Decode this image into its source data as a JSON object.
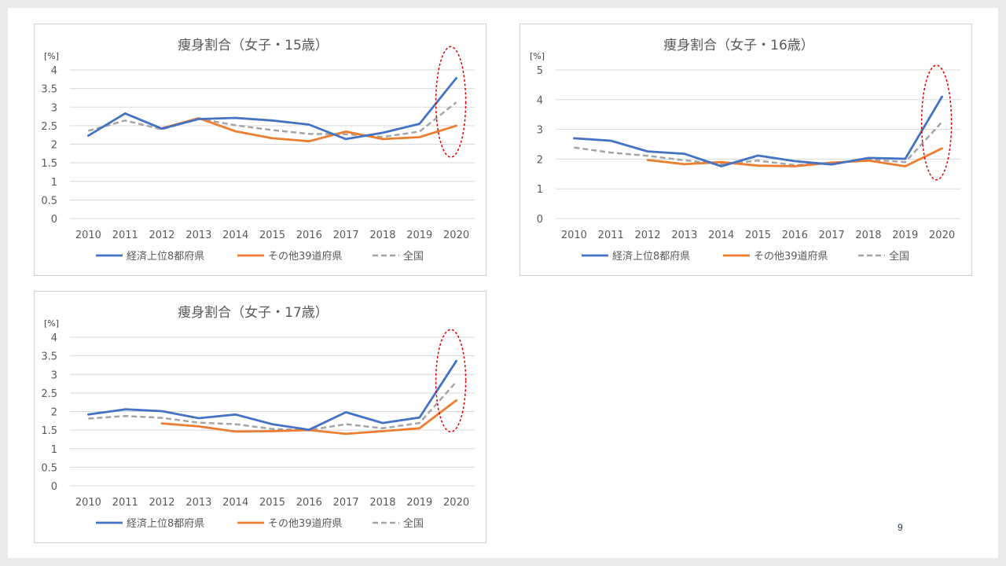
{
  "page": {
    "number": "9"
  },
  "legend": {
    "top": "経済上位8都府県",
    "other": "その他39道府県",
    "national": "全国"
  },
  "colors": {
    "top": "#4472c4",
    "other": "#ed7d31",
    "national": "#a5a5a5",
    "highlight": "#e00000",
    "grid": "#d9d9d9",
    "text": "#595959"
  },
  "chart_data": [
    {
      "type": "line",
      "title": "痩身割合（女子・15歳）",
      "ylabel": "[%]",
      "ylim": [
        0,
        4
      ],
      "yticks": [
        "0",
        "0.5",
        "1",
        "1.5",
        "2",
        "2.5",
        "3",
        "3.5",
        "4"
      ],
      "x": [
        "2010",
        "2011",
        "2012",
        "2013",
        "2014",
        "2015",
        "2016",
        "2017",
        "2018",
        "2019",
        "2020"
      ],
      "legend_position": "bottom",
      "series": [
        {
          "name": "経済上位8都府県",
          "key": "top",
          "values": [
            2.23,
            2.83,
            2.42,
            2.68,
            2.71,
            2.64,
            2.53,
            2.14,
            2.31,
            2.55,
            3.78
          ]
        },
        {
          "name": "その他39道府県",
          "key": "other",
          "values": [
            null,
            null,
            2.43,
            2.7,
            2.35,
            2.16,
            2.08,
            2.34,
            2.14,
            2.19,
            2.5
          ]
        },
        {
          "name": "全国",
          "key": "national",
          "values": [
            2.36,
            2.64,
            2.4,
            2.69,
            2.51,
            2.38,
            2.28,
            2.27,
            2.2,
            2.34,
            3.13
          ]
        }
      ],
      "highlight_x": "2020"
    },
    {
      "type": "line",
      "title": "痩身割合（女子・16歳）",
      "ylabel": "[%]",
      "ylim": [
        0,
        5
      ],
      "yticks": [
        "0",
        "1",
        "2",
        "3",
        "4",
        "5"
      ],
      "x": [
        "2010",
        "2011",
        "2012",
        "2013",
        "2014",
        "2015",
        "2016",
        "2017",
        "2018",
        "2019",
        "2020"
      ],
      "legend_position": "bottom",
      "series": [
        {
          "name": "経済上位8都府県",
          "key": "top",
          "values": [
            2.7,
            2.62,
            2.26,
            2.18,
            1.76,
            2.12,
            1.93,
            1.82,
            2.04,
            2.01,
            4.1
          ]
        },
        {
          "name": "その他39道府県",
          "key": "other",
          "values": [
            null,
            null,
            1.97,
            1.83,
            1.9,
            1.78,
            1.76,
            1.88,
            1.95,
            1.76,
            2.36
          ]
        },
        {
          "name": "全国",
          "key": "national",
          "values": [
            2.39,
            2.22,
            2.11,
            1.96,
            1.83,
            1.95,
            1.8,
            1.86,
            1.99,
            1.9,
            3.25
          ]
        }
      ],
      "highlight_x": "2020"
    },
    {
      "type": "line",
      "title": "痩身割合（女子・17歳）",
      "ylabel": "[%]",
      "ylim": [
        0,
        4
      ],
      "yticks": [
        "0",
        "0.5",
        "1",
        "1.5",
        "2",
        "2.5",
        "3",
        "3.5",
        "4"
      ],
      "x": [
        "2010",
        "2011",
        "2012",
        "2013",
        "2014",
        "2015",
        "2016",
        "2017",
        "2018",
        "2019",
        "2020"
      ],
      "legend_position": "bottom",
      "series": [
        {
          "name": "経済上位8都府県",
          "key": "top",
          "values": [
            1.92,
            2.06,
            2.01,
            1.82,
            1.92,
            1.66,
            1.51,
            1.98,
            1.69,
            1.84,
            3.36
          ]
        },
        {
          "name": "その他39道府県",
          "key": "other",
          "values": [
            null,
            null,
            1.68,
            1.6,
            1.46,
            1.47,
            1.5,
            1.4,
            1.47,
            1.55,
            2.3
          ]
        },
        {
          "name": "全国",
          "key": "national",
          "values": [
            1.81,
            1.88,
            1.83,
            1.7,
            1.66,
            1.53,
            1.5,
            1.66,
            1.55,
            1.69,
            2.8
          ]
        }
      ],
      "highlight_x": "2020"
    }
  ]
}
